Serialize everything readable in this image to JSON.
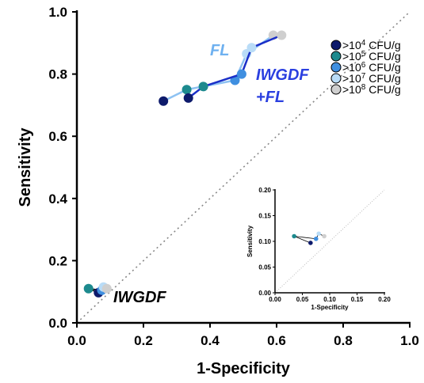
{
  "chart_data": {
    "type": "line",
    "xlabel": "1-Specificity",
    "ylabel": "Sensitivity",
    "xlim": [
      0.0,
      1.0
    ],
    "ylim": [
      0.0,
      1.0
    ],
    "x_ticks": [
      "0.0",
      "0.2",
      "0.4",
      "0.6",
      "0.8",
      "1.0"
    ],
    "y_ticks": [
      "0.0",
      "0.2",
      "0.4",
      "0.6",
      "0.8",
      "1.0"
    ],
    "reference_line": "diagonal",
    "legend_position": "top-right",
    "legend": [
      {
        "prefix": ">10",
        "exp": "4",
        "suffix": " CFU/g",
        "color": "#0d1a6b"
      },
      {
        "prefix": ">10",
        "exp": "5",
        "suffix": " CFU/g",
        "color": "#1d8a8e"
      },
      {
        "prefix": ">10",
        "exp": "6",
        "suffix": " CFU/g",
        "color": "#3f8fe0"
      },
      {
        "prefix": ">10",
        "exp": "7",
        "suffix": " CFU/g",
        "color": "#b9dcf7"
      },
      {
        "prefix": ">10",
        "exp": "8",
        "suffix": " CFU/g",
        "color": "#cfcfcf"
      }
    ],
    "groups": [
      {
        "label": "FL",
        "label_color": "#6fb1f0",
        "line_color": "#8ec2f2",
        "points": [
          {
            "x": 0.26,
            "y": 0.713,
            "level": 0
          },
          {
            "x": 0.33,
            "y": 0.75,
            "level": 1
          },
          {
            "x": 0.475,
            "y": 0.78,
            "level": 2
          },
          {
            "x": 0.51,
            "y": 0.865,
            "level": 3
          },
          {
            "x": 0.59,
            "y": 0.925,
            "level": 4
          }
        ]
      },
      {
        "label": "IWGDF +FL",
        "label_lines": [
          "IWGDF",
          "+FL"
        ],
        "label_color": "#2a3fe0",
        "line_color": "#1a2fc8",
        "points": [
          {
            "x": 0.335,
            "y": 0.723,
            "level": 0
          },
          {
            "x": 0.38,
            "y": 0.76,
            "level": 1
          },
          {
            "x": 0.495,
            "y": 0.8,
            "level": 2
          },
          {
            "x": 0.525,
            "y": 0.885,
            "level": 3
          },
          {
            "x": 0.615,
            "y": 0.925,
            "level": 4
          }
        ]
      },
      {
        "label": "IWGDF",
        "label_color": "#000000",
        "line_color": "#000000",
        "points": [
          {
            "x": 0.065,
            "y": 0.097,
            "level": 0
          },
          {
            "x": 0.035,
            "y": 0.11,
            "level": 1
          },
          {
            "x": 0.075,
            "y": 0.105,
            "level": 2
          },
          {
            "x": 0.08,
            "y": 0.115,
            "level": 3
          },
          {
            "x": 0.09,
            "y": 0.11,
            "level": 4
          }
        ]
      }
    ],
    "inset": {
      "xlabel": "1-Specificity",
      "ylabel": "Sensitivity",
      "xlim": [
        0.0,
        0.2
      ],
      "ylim": [
        0.0,
        0.2
      ],
      "x_ticks": [
        "0.00",
        "0.05",
        "0.10",
        "0.15",
        "0.20"
      ],
      "y_ticks": [
        "0.00",
        "0.05",
        "0.10",
        "0.15",
        "0.20"
      ],
      "group": "IWGDF"
    }
  }
}
